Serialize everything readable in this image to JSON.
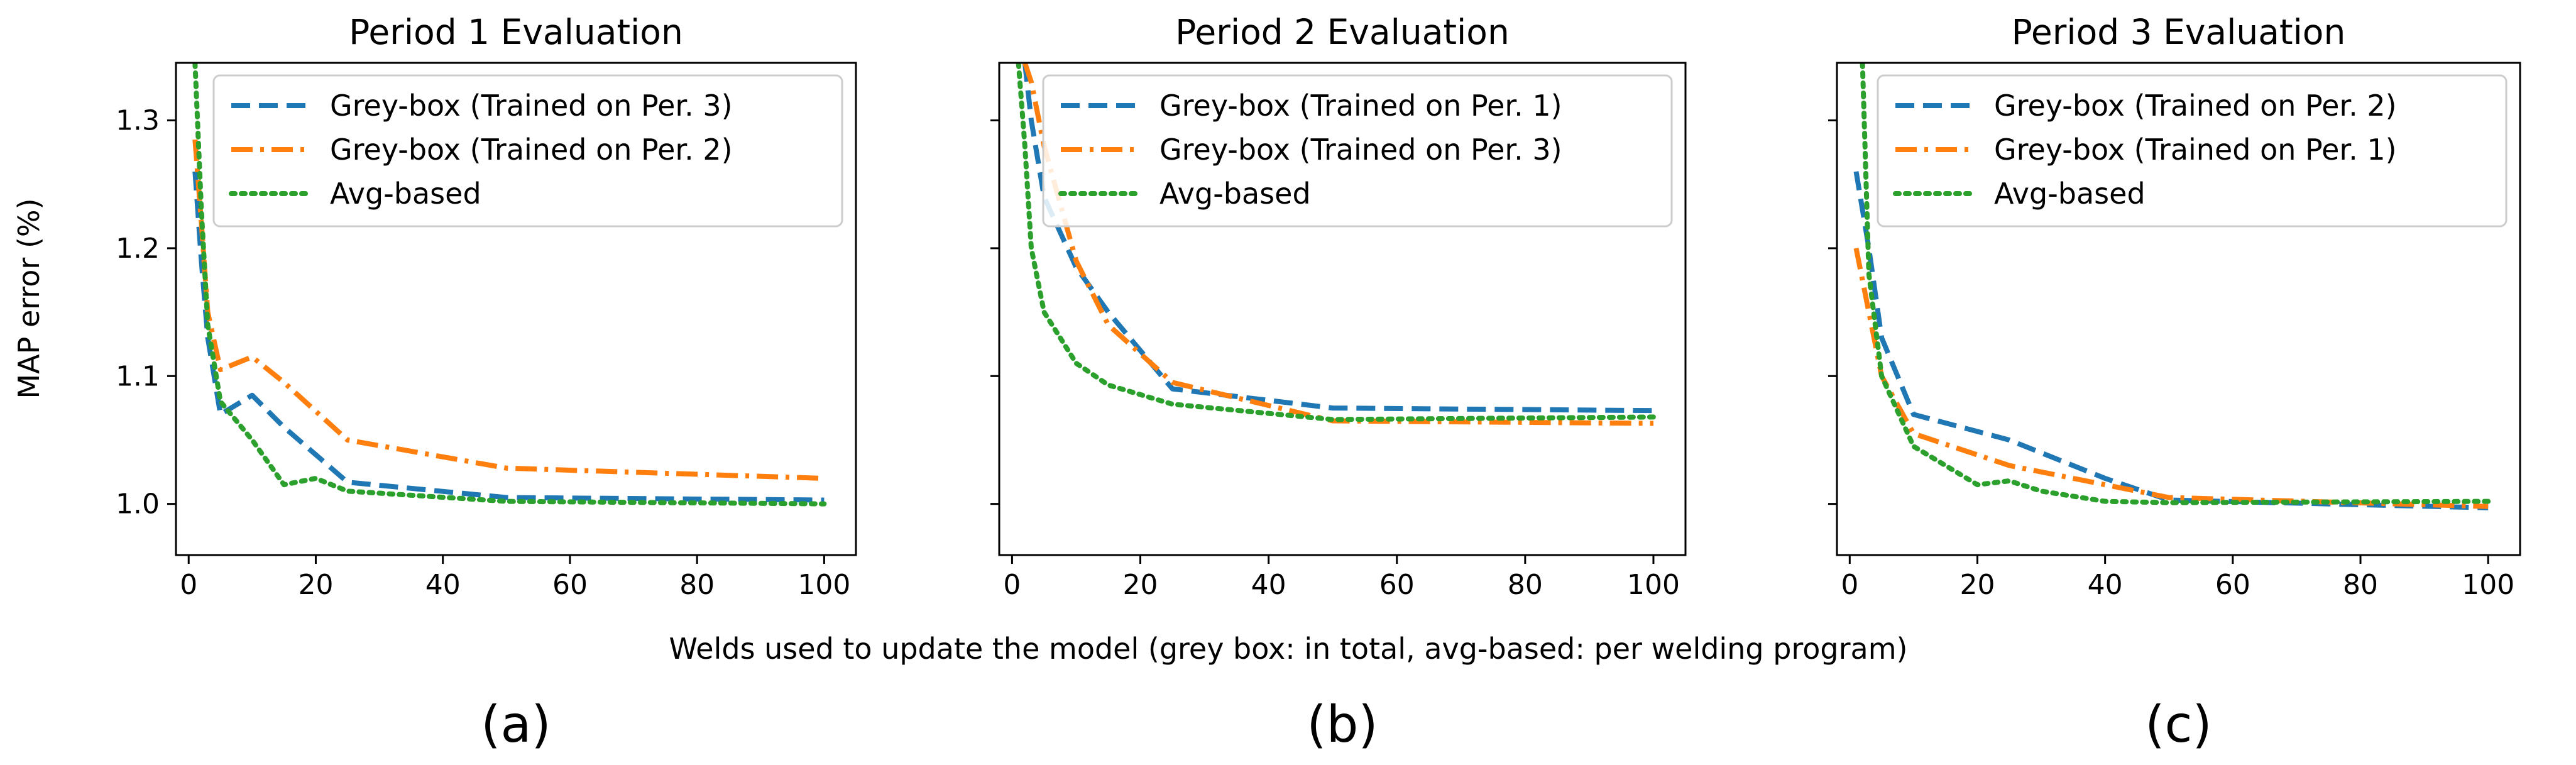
{
  "figure": {
    "shared_xlabel": "Welds used to update the model (grey box: in total, avg-based: per welding program)",
    "shared_ylabel": "MAP error (%)",
    "colors": {
      "blue": "#1f77b4",
      "orange": "#ff7f0e",
      "green": "#2ca02c"
    }
  },
  "chart_data": [
    {
      "type": "line",
      "panel_label": "(a)",
      "title": "Period 1 Evaluation",
      "xlabel": "Welds used to update the model (grey box: in total, avg-based: per welding program)",
      "ylabel": "MAP error (%)",
      "xlim": [
        -2,
        105
      ],
      "ylim": [
        0.96,
        1.345
      ],
      "xticks": [
        0,
        20,
        40,
        60,
        80,
        100
      ],
      "yticks": [
        1.0,
        1.1,
        1.2,
        1.3
      ],
      "xtick_labels": [
        "0",
        "20",
        "40",
        "60",
        "80",
        "100"
      ],
      "ytick_labels": [
        "1.0",
        "1.1",
        "1.2",
        "1.3"
      ],
      "legend_position": "top-right",
      "series": [
        {
          "name": "Grey-box (Trained on Per. 3)",
          "color": "#1f77b4",
          "dash": "dashed",
          "x": [
            1,
            2,
            3,
            5,
            10,
            15,
            25,
            50,
            100
          ],
          "y": [
            1.26,
            1.19,
            1.13,
            1.07,
            1.085,
            1.06,
            1.017,
            1.005,
            1.003
          ]
        },
        {
          "name": "Grey-box (Trained on Per. 2)",
          "color": "#ff7f0e",
          "dash": "dashdot",
          "x": [
            1,
            2,
            3,
            5,
            10,
            15,
            25,
            50,
            100
          ],
          "y": [
            1.285,
            1.22,
            1.15,
            1.105,
            1.115,
            1.095,
            1.05,
            1.028,
            1.02
          ]
        },
        {
          "name": "Avg-based",
          "color": "#2ca02c",
          "dash": "dotted",
          "x": [
            1,
            2,
            3,
            5,
            10,
            15,
            20,
            25,
            50,
            100
          ],
          "y": [
            1.345,
            1.23,
            1.14,
            1.08,
            1.05,
            1.015,
            1.02,
            1.01,
            1.002,
            1.0
          ]
        }
      ]
    },
    {
      "type": "line",
      "panel_label": "(b)",
      "title": "Period 2 Evaluation",
      "xlabel": "Welds used to update the model (grey box: in total, avg-based: per welding program)",
      "ylabel": "MAP error (%)",
      "xlim": [
        -2,
        105
      ],
      "ylim": [
        0.96,
        1.345
      ],
      "xticks": [
        0,
        20,
        40,
        60,
        80,
        100
      ],
      "yticks": [
        1.0,
        1.1,
        1.2,
        1.3
      ],
      "xtick_labels": [
        "0",
        "20",
        "40",
        "60",
        "80",
        "100"
      ],
      "ytick_labels": [],
      "legend_position": "top-right",
      "series": [
        {
          "name": "Grey-box (Trained on Per. 1)",
          "color": "#1f77b4",
          "dash": "dashed",
          "x": [
            2,
            3,
            5,
            10,
            15,
            25,
            50,
            100
          ],
          "y": [
            1.345,
            1.3,
            1.24,
            1.185,
            1.15,
            1.09,
            1.075,
            1.073
          ]
        },
        {
          "name": "Grey-box (Trained on Per. 3)",
          "color": "#ff7f0e",
          "dash": "dashdot",
          "x": [
            2,
            3,
            5,
            10,
            15,
            25,
            50,
            100
          ],
          "y": [
            1.345,
            1.33,
            1.28,
            1.19,
            1.14,
            1.095,
            1.065,
            1.063
          ]
        },
        {
          "name": "Avg-based",
          "color": "#2ca02c",
          "dash": "dotted",
          "x": [
            1,
            2,
            3,
            5,
            10,
            15,
            25,
            50,
            100
          ],
          "y": [
            1.345,
            1.28,
            1.2,
            1.15,
            1.11,
            1.093,
            1.078,
            1.066,
            1.068
          ]
        }
      ]
    },
    {
      "type": "line",
      "panel_label": "(c)",
      "title": "Period 3 Evaluation",
      "xlabel": "Welds used to update the model (grey box: in total, avg-based: per welding program)",
      "ylabel": "MAP error (%)",
      "xlim": [
        -2,
        105
      ],
      "ylim": [
        0.96,
        1.345
      ],
      "xticks": [
        0,
        20,
        40,
        60,
        80,
        100
      ],
      "yticks": [
        1.0,
        1.1,
        1.2,
        1.3
      ],
      "xtick_labels": [
        "0",
        "20",
        "40",
        "60",
        "80",
        "100"
      ],
      "ytick_labels": [],
      "legend_position": "top-right",
      "series": [
        {
          "name": "Grey-box (Trained on Per. 2)",
          "color": "#1f77b4",
          "dash": "dashed",
          "x": [
            1,
            3,
            5,
            10,
            25,
            40,
            50,
            100
          ],
          "y": [
            1.26,
            1.2,
            1.13,
            1.07,
            1.05,
            1.02,
            1.003,
            0.997
          ]
        },
        {
          "name": "Grey-box (Trained on Per. 1)",
          "color": "#ff7f0e",
          "dash": "dashdot",
          "x": [
            1,
            3,
            5,
            10,
            25,
            50,
            100
          ],
          "y": [
            1.2,
            1.15,
            1.1,
            1.055,
            1.03,
            1.005,
            0.998
          ]
        },
        {
          "name": "Avg-based",
          "color": "#2ca02c",
          "dash": "dotted",
          "x": [
            2,
            3,
            5,
            10,
            15,
            20,
            25,
            30,
            40,
            50,
            100
          ],
          "y": [
            1.345,
            1.18,
            1.1,
            1.045,
            1.03,
            1.015,
            1.018,
            1.01,
            1.002,
            1.001,
            1.002
          ]
        }
      ]
    }
  ]
}
